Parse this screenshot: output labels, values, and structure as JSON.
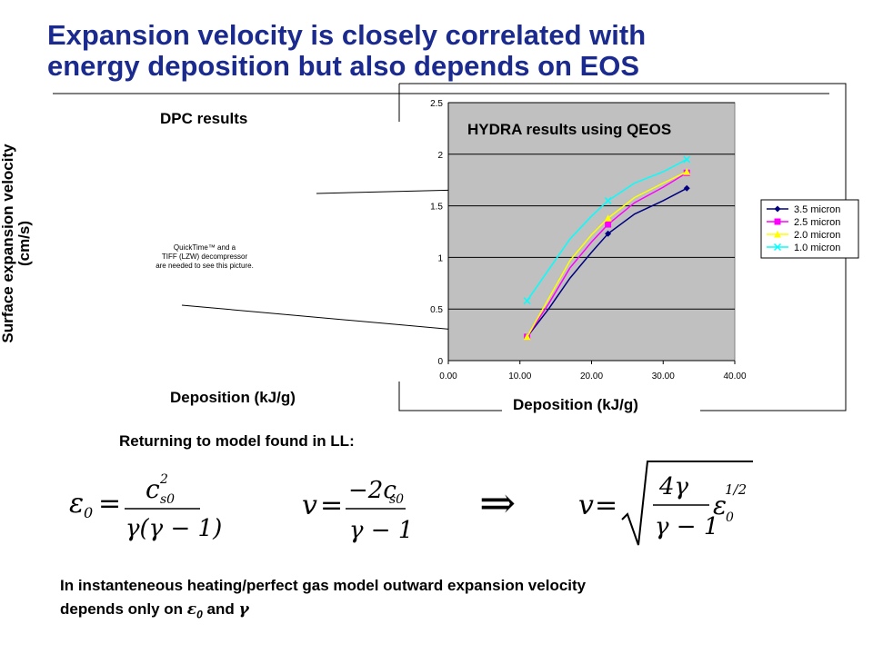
{
  "slide": {
    "title_line1": "Expansion velocity is closely correlated with",
    "title_line2": "energy deposition but also depends on EOS",
    "dpc_label": "DPC results",
    "hydra_label": "HYDRA results using QEOS",
    "y_label_line1": "Surface expansion velocity",
    "y_label_line2": "(cm/s)",
    "dpc_xlabel": "Deposition (kJ/g)",
    "quicktime_line1": "QuickTime™ and a",
    "quicktime_line2": "TIFF (LZW) decompressor",
    "quicktime_line3": "are needed to see this picture.",
    "returning": "Returning to model found in LL:",
    "bottom_line1": "In instanteneous heating/perfect gas model outward expansion velocity",
    "bottom_line2_prefix": "depends only on ",
    "bottom_eps": "ε",
    "bottom_eps_sub": "0",
    "bottom_and": " and ",
    "bottom_gamma": "γ"
  },
  "colors": {
    "title": "#1a2a8e",
    "plot_bg": "#c0c0c0"
  },
  "equations": {
    "eq1_lhs": "ε",
    "eq1_lhs_sub": "0",
    "eq1_num_c": "c",
    "eq1_num_sub": "s0",
    "eq1_num_sup": "2",
    "eq1_den": "γ(γ − 1)",
    "eq2_lhs": "v",
    "eq2_num": "−2c",
    "eq2_num_sub": "s0",
    "eq2_den": "γ − 1",
    "implies": "⇒",
    "eq3_lhs": "v",
    "eq3_num": "4γ",
    "eq3_den": "γ − 1",
    "eq3_eps": "ε",
    "eq3_eps_sub": "0",
    "eq3_sup": "1/2"
  },
  "chart_data": {
    "type": "line",
    "title": "",
    "xlabel": "Deposition (kJ/g)",
    "ylabel": "",
    "xlim": [
      0,
      40
    ],
    "ylim": [
      0,
      2.5
    ],
    "x_ticks": [
      "0.00",
      "10.00",
      "20.00",
      "30.00",
      "40.00"
    ],
    "y_ticks": [
      "0",
      "0.5",
      "1",
      "1.5",
      "2",
      "2.5"
    ],
    "grid": "horizontal",
    "legend_position": "right",
    "series": [
      {
        "name": "3.5 micron",
        "color": "#000080",
        "marker": "diamond",
        "points": [
          [
            11,
            0.23
          ],
          [
            22.3,
            1.23
          ],
          [
            33.3,
            1.67
          ]
        ],
        "curve": [
          [
            11,
            0.23
          ],
          [
            14,
            0.5
          ],
          [
            17,
            0.8
          ],
          [
            20,
            1.05
          ],
          [
            22.3,
            1.23
          ],
          [
            26,
            1.42
          ],
          [
            30,
            1.55
          ],
          [
            33.3,
            1.67
          ]
        ]
      },
      {
        "name": "2.5 micron",
        "color": "#ff00ff",
        "marker": "square",
        "points": [
          [
            11,
            0.23
          ],
          [
            22.3,
            1.32
          ],
          [
            33.3,
            1.82
          ]
        ],
        "curve": [
          [
            11,
            0.23
          ],
          [
            14,
            0.55
          ],
          [
            17,
            0.9
          ],
          [
            20,
            1.15
          ],
          [
            22.3,
            1.32
          ],
          [
            26,
            1.53
          ],
          [
            30,
            1.68
          ],
          [
            33.3,
            1.82
          ]
        ]
      },
      {
        "name": "2.0 micron",
        "color": "#ffff00",
        "marker": "triangle",
        "points": [
          [
            11,
            0.23
          ],
          [
            22.3,
            1.38
          ],
          [
            33.3,
            1.83
          ]
        ],
        "curve": [
          [
            11,
            0.23
          ],
          [
            14,
            0.6
          ],
          [
            17,
            0.97
          ],
          [
            20,
            1.22
          ],
          [
            22.3,
            1.38
          ],
          [
            26,
            1.58
          ],
          [
            30,
            1.72
          ],
          [
            33.3,
            1.83
          ]
        ]
      },
      {
        "name": "1.0 micron",
        "color": "#00ffff",
        "marker": "x",
        "points": [
          [
            11,
            0.58
          ],
          [
            22.3,
            1.55
          ],
          [
            33.3,
            1.95
          ]
        ],
        "curve": [
          [
            11,
            0.58
          ],
          [
            14,
            0.88
          ],
          [
            17,
            1.18
          ],
          [
            20,
            1.4
          ],
          [
            22.3,
            1.55
          ],
          [
            26,
            1.72
          ],
          [
            30,
            1.83
          ],
          [
            33.3,
            1.95
          ]
        ]
      }
    ]
  }
}
